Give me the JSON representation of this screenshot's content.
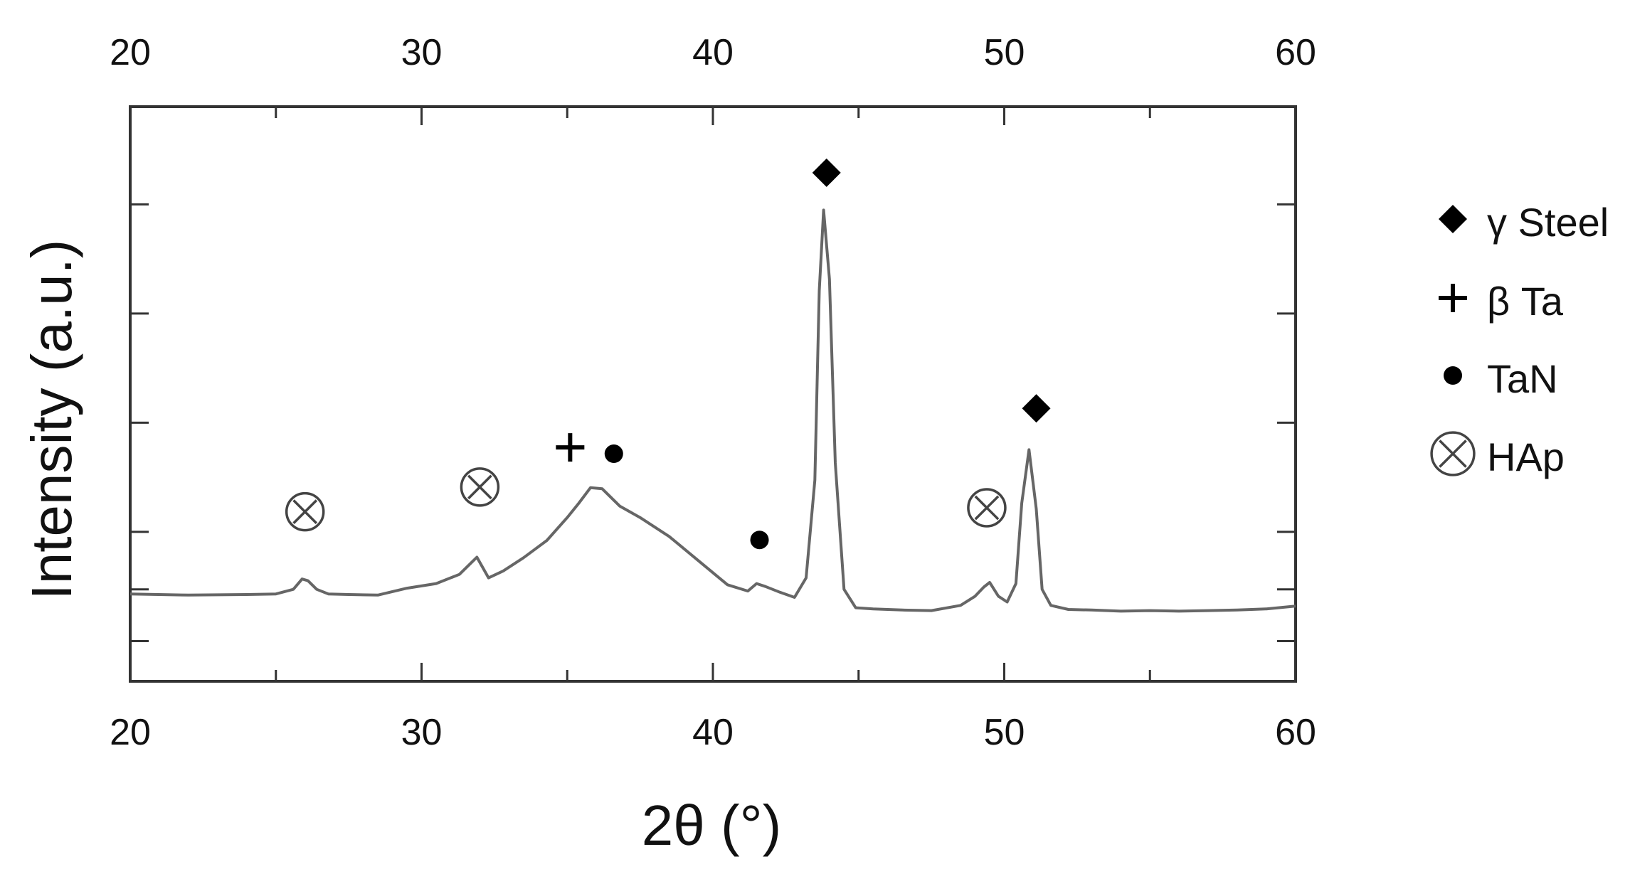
{
  "chart_data": {
    "type": "line",
    "xlabel": "2θ (°)",
    "ylabel": "Intensity (a.u.)",
    "xlim": [
      20,
      60
    ],
    "ylim": [
      0,
      100
    ],
    "x_ticks": [
      20,
      30,
      40,
      50,
      60
    ],
    "top_x_ticks": [
      20,
      30,
      40,
      50,
      60
    ],
    "y_tick_values": [
      7,
      16,
      26,
      45,
      64,
      83,
      100
    ],
    "grid": false,
    "legend_position": "right",
    "line_color": "#666666",
    "series": [
      {
        "x": [
          20,
          22,
          24,
          25,
          25.6,
          25.9,
          26.1,
          26.4,
          26.8,
          27.5,
          28.5,
          29.5,
          30.5,
          31.3,
          31.7,
          31.9,
          32.3,
          32.8,
          33.5,
          34.3,
          35,
          35.4,
          35.8,
          36.2,
          36.8,
          37.5,
          38.5,
          39.5,
          40.5,
          41.2,
          41.5,
          41.8,
          42.3,
          42.8,
          43.2,
          43.5,
          43.65,
          43.8,
          44,
          44.2,
          44.5,
          44.9,
          45.5,
          46.5,
          47.5,
          48.5,
          49,
          49.3,
          49.5,
          49.8,
          50.1,
          50.4,
          50.6,
          50.85,
          51.1,
          51.3,
          51.6,
          52.2,
          53,
          54,
          55,
          56,
          57,
          58,
          59,
          60
        ],
        "y": [
          15.2,
          15,
          15.1,
          15.2,
          16,
          17.8,
          17.5,
          16,
          15.2,
          15.1,
          15,
          16.2,
          17,
          18.6,
          20.6,
          21.6,
          18,
          19.2,
          21.5,
          24.5,
          28.5,
          31,
          33.7,
          33.5,
          30.5,
          28.5,
          25.2,
          21,
          16.8,
          15.7,
          17,
          16.5,
          15.5,
          14.6,
          18,
          35,
          68,
          82,
          70,
          38,
          16,
          12.8,
          12.6,
          12.4,
          12.3,
          13.2,
          14.8,
          16.4,
          17.2,
          14.8,
          13.8,
          17,
          31,
          40.3,
          30,
          16,
          13.2,
          12.5,
          12.4,
          12.2,
          12.3,
          12.2,
          12.3,
          12.4,
          12.6,
          13.1
        ]
      }
    ],
    "annotations": [
      {
        "symbol": "circle-x",
        "x": 26.0,
        "y": 29.5
      },
      {
        "symbol": "circle-x",
        "x": 32.0,
        "y": 33.8
      },
      {
        "symbol": "plus",
        "x": 35.1,
        "y": 40.7
      },
      {
        "symbol": "dot",
        "x": 36.6,
        "y": 39.6
      },
      {
        "symbol": "dot",
        "x": 41.6,
        "y": 24.6
      },
      {
        "symbol": "diamond",
        "x": 43.9,
        "y": 88.5
      },
      {
        "symbol": "circle-x",
        "x": 49.4,
        "y": 30.2
      },
      {
        "symbol": "diamond",
        "x": 51.1,
        "y": 47.5
      }
    ],
    "legend": [
      {
        "symbol": "diamond",
        "label": "γ Steel"
      },
      {
        "symbol": "plus",
        "label": "β Ta"
      },
      {
        "symbol": "dot",
        "label": "TaN"
      },
      {
        "symbol": "circle-x",
        "label": "HAp"
      }
    ]
  }
}
